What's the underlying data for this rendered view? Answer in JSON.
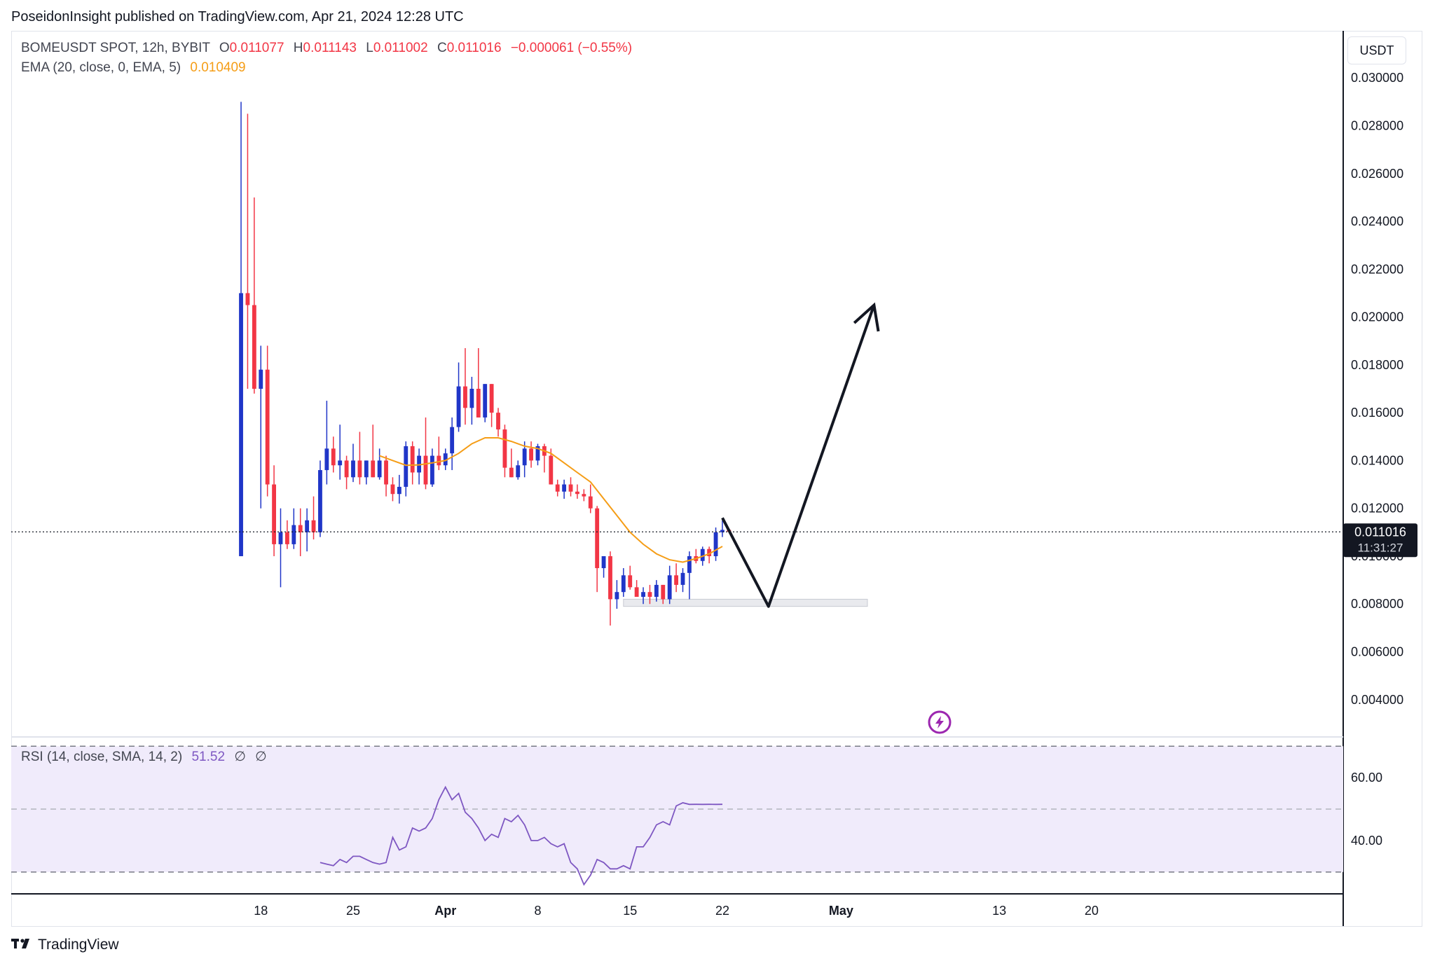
{
  "header": {
    "published": "PoseidonInsight published on TradingView.com, Apr 21, 2024 12:28 UTC"
  },
  "legend": {
    "symbol": "BOMEUSDT SPOT, 12h, BYBIT",
    "o_label": "O",
    "o_value": "0.011077",
    "h_label": "H",
    "h_value": "0.011143",
    "l_label": "L",
    "l_value": "0.011002",
    "c_label": "C",
    "c_value": "0.011016",
    "change": "−0.000061 (−0.55%)",
    "ema_label": "EMA (20, close, 0, EMA, 5)",
    "ema_value": "0.010409",
    "rsi_label": "RSI (14, close, SMA, 14, 2)",
    "rsi_value": "51.52",
    "rsi_extra1": "∅",
    "rsi_extra2": "∅"
  },
  "price_axis": {
    "currency": "USDT",
    "last_price": "0.011016",
    "countdown": "11:31:27"
  },
  "footer": {
    "brand": "TradingView"
  },
  "colors": {
    "up": "#2036c8",
    "down": "#f23645",
    "ema": "#f59d16",
    "rsi": "#7e57c2",
    "rsi_band": "#f0ebfb",
    "arrow": "#131722",
    "support_box": "#e9eaee"
  },
  "icons": {
    "flash": "lightning-bolt-icon",
    "brand": "tradingview-logo-icon"
  },
  "chart_data": [
    {
      "type": "candlestick",
      "title": "BOMEUSDT SPOT, 12h, BYBIT",
      "ylim": [
        0.0025,
        0.0315
      ],
      "yticks": [
        "0.030000",
        "0.028000",
        "0.026000",
        "0.024000",
        "0.022000",
        "0.020000",
        "0.018000",
        "0.016000",
        "0.014000",
        "0.012000",
        "0.010000",
        "0.008000",
        "0.006000",
        "0.004000"
      ],
      "xticks": [
        {
          "label": "18",
          "day": 18
        },
        {
          "label": "25",
          "day": 25
        },
        {
          "label": "Apr",
          "day": 32
        },
        {
          "label": "8",
          "day": 39
        },
        {
          "label": "15",
          "day": 46
        },
        {
          "label": "22",
          "day": 53
        },
        {
          "label": "May",
          "day": 62
        },
        {
          "label": "13",
          "day": 74
        },
        {
          "label": "20",
          "day": 81
        }
      ],
      "candles": [
        [
          0.01,
          0.029,
          0.01,
          0.021
        ],
        [
          0.021,
          0.0285,
          0.017,
          0.0205
        ],
        [
          0.0205,
          0.025,
          0.0168,
          0.017
        ],
        [
          0.017,
          0.0188,
          0.012,
          0.0178
        ],
        [
          0.0178,
          0.0188,
          0.0125,
          0.013
        ],
        [
          0.013,
          0.0138,
          0.01,
          0.0105
        ],
        [
          0.0105,
          0.012,
          0.0087,
          0.011
        ],
        [
          0.011,
          0.0115,
          0.0103,
          0.0105
        ],
        [
          0.0105,
          0.012,
          0.0103,
          0.0113
        ],
        [
          0.0113,
          0.012,
          0.01,
          0.011
        ],
        [
          0.011,
          0.012,
          0.0102,
          0.0115
        ],
        [
          0.0115,
          0.0125,
          0.0107,
          0.011
        ],
        [
          0.011,
          0.014,
          0.0108,
          0.0136
        ],
        [
          0.0136,
          0.0165,
          0.013,
          0.0145
        ],
        [
          0.0145,
          0.015,
          0.0135,
          0.0138
        ],
        [
          0.0138,
          0.0155,
          0.0132,
          0.014
        ],
        [
          0.014,
          0.0142,
          0.0128,
          0.0133
        ],
        [
          0.0133,
          0.0147,
          0.0131,
          0.014
        ],
        [
          0.014,
          0.0152,
          0.013,
          0.0133
        ],
        [
          0.0133,
          0.014,
          0.013,
          0.014
        ],
        [
          0.014,
          0.0155,
          0.0133,
          0.0133
        ],
        [
          0.0133,
          0.0145,
          0.0132,
          0.014
        ],
        [
          0.014,
          0.0142,
          0.0125,
          0.013
        ],
        [
          0.013,
          0.0133,
          0.0123,
          0.0126
        ],
        [
          0.0126,
          0.0134,
          0.0122,
          0.0129
        ],
        [
          0.0129,
          0.0148,
          0.0125,
          0.0146
        ],
        [
          0.0146,
          0.0148,
          0.013,
          0.0135
        ],
        [
          0.0135,
          0.0145,
          0.013,
          0.0142
        ],
        [
          0.0142,
          0.0158,
          0.0128,
          0.013
        ],
        [
          0.013,
          0.0145,
          0.0129,
          0.0142
        ],
        [
          0.0142,
          0.015,
          0.0136,
          0.0138
        ],
        [
          0.0138,
          0.0145,
          0.0136,
          0.0143
        ],
        [
          0.0143,
          0.0158,
          0.0136,
          0.0154
        ],
        [
          0.0154,
          0.0181,
          0.0152,
          0.0171
        ],
        [
          0.0171,
          0.0187,
          0.0155,
          0.0162
        ],
        [
          0.0162,
          0.0175,
          0.0155,
          0.017
        ],
        [
          0.017,
          0.0187,
          0.016,
          0.0158
        ],
        [
          0.0158,
          0.0172,
          0.0156,
          0.0172
        ],
        [
          0.0172,
          0.0172,
          0.0154,
          0.016
        ],
        [
          0.016,
          0.0162,
          0.015,
          0.0153
        ],
        [
          0.0153,
          0.0155,
          0.0133,
          0.0137
        ],
        [
          0.0137,
          0.0145,
          0.0133,
          0.0133
        ],
        [
          0.0133,
          0.014,
          0.0132,
          0.0138
        ],
        [
          0.0138,
          0.0148,
          0.0133,
          0.0145
        ],
        [
          0.0145,
          0.0148,
          0.0137,
          0.014
        ],
        [
          0.014,
          0.0147,
          0.0138,
          0.0146
        ],
        [
          0.0146,
          0.0147,
          0.0135,
          0.0142
        ],
        [
          0.0142,
          0.0145,
          0.013,
          0.013
        ],
        [
          0.013,
          0.0132,
          0.0125,
          0.0127
        ],
        [
          0.0127,
          0.0132,
          0.0124,
          0.013
        ],
        [
          0.013,
          0.0133,
          0.0125,
          0.0127
        ],
        [
          0.0127,
          0.013,
          0.0124,
          0.0126
        ],
        [
          0.0126,
          0.0128,
          0.0123,
          0.0125
        ],
        [
          0.0125,
          0.013,
          0.0118,
          0.012
        ],
        [
          0.012,
          0.0121,
          0.0085,
          0.0095
        ],
        [
          0.0095,
          0.01,
          0.0091,
          0.01
        ],
        [
          0.01,
          0.0102,
          0.0071,
          0.0082
        ],
        [
          0.0082,
          0.009,
          0.0078,
          0.0085
        ],
        [
          0.0085,
          0.0095,
          0.0083,
          0.0092
        ],
        [
          0.0092,
          0.0096,
          0.0086,
          0.0087
        ],
        [
          0.0087,
          0.009,
          0.0083,
          0.0083
        ],
        [
          0.0083,
          0.0087,
          0.008,
          0.0085
        ],
        [
          0.0085,
          0.0088,
          0.008,
          0.0083
        ],
        [
          0.0083,
          0.009,
          0.0081,
          0.0088
        ],
        [
          0.0088,
          0.0088,
          0.008,
          0.0082
        ],
        [
          0.0082,
          0.0096,
          0.008,
          0.0092
        ],
        [
          0.0092,
          0.0097,
          0.0085,
          0.0088
        ],
        [
          0.0088,
          0.0095,
          0.0085,
          0.0093
        ],
        [
          0.0093,
          0.0102,
          0.0082,
          0.01
        ],
        [
          0.01,
          0.0103,
          0.0097,
          0.0098
        ],
        [
          0.0098,
          0.0104,
          0.0096,
          0.0103
        ],
        [
          0.0103,
          0.0104,
          0.0097,
          0.01
        ],
        [
          0.01,
          0.0112,
          0.0098,
          0.011
        ],
        [
          0.011,
          0.0115,
          0.0108,
          0.0111
        ],
        [
          0.0111,
          0.01114,
          0.011,
          0.01102
        ]
      ],
      "candles_start_day": 16.5,
      "candle_interval_days": 0.5,
      "ema": [
        [
          27.0,
          0.0142
        ],
        [
          28.0,
          0.014
        ],
        [
          29.0,
          0.0138
        ],
        [
          30.0,
          0.01382
        ],
        [
          31.0,
          0.0139
        ],
        [
          32.0,
          0.014
        ],
        [
          33.0,
          0.0143
        ],
        [
          34.0,
          0.0147
        ],
        [
          35.0,
          0.01495
        ],
        [
          36.0,
          0.01495
        ],
        [
          37.0,
          0.0148
        ],
        [
          38.0,
          0.0146
        ],
        [
          39.0,
          0.0145
        ],
        [
          40.0,
          0.0143
        ],
        [
          41.0,
          0.0139
        ],
        [
          42.0,
          0.0135
        ],
        [
          43.0,
          0.0131
        ],
        [
          44.0,
          0.0124
        ],
        [
          45.0,
          0.0117
        ],
        [
          46.0,
          0.011
        ],
        [
          47.0,
          0.0105
        ],
        [
          48.0,
          0.0101
        ],
        [
          49.0,
          0.00985
        ],
        [
          50.0,
          0.00975
        ],
        [
          51.0,
          0.0099
        ],
        [
          52.0,
          0.0101
        ],
        [
          53.0,
          0.01041
        ]
      ],
      "last_price": 0.011016,
      "support_zone": {
        "day_start": 45.5,
        "day_end": 64.0,
        "y_low": 0.0079,
        "y_high": 0.0082
      },
      "projection": [
        [
          53.0,
          0.0116
        ],
        [
          56.5,
          0.0079
        ],
        [
          64.5,
          0.0205
        ]
      ]
    },
    {
      "type": "line",
      "title": "RSI (14, close, SMA, 14, 2)",
      "ylim": [
        23.5,
        72.5
      ],
      "yticks": [
        "60.00",
        "40.00"
      ],
      "band": [
        30,
        70
      ],
      "midline": 50,
      "series": [
        {
          "name": "RSI",
          "x": [
            22.5,
            23.0,
            23.5,
            24.0,
            24.5,
            25.0,
            25.5,
            26.0,
            26.5,
            27.0,
            27.5,
            28.0,
            28.5,
            29.0,
            29.5,
            30.0,
            30.5,
            31.0,
            31.5,
            32.0,
            32.5,
            33.0,
            33.5,
            34.0,
            34.5,
            35.0,
            35.5,
            36.0,
            36.5,
            37.0,
            37.5,
            38.0,
            38.5,
            39.0,
            39.5,
            40.0,
            40.5,
            41.0,
            41.5,
            42.0,
            42.5,
            43.0,
            43.5,
            44.0,
            44.5,
            45.0,
            45.5,
            46.0,
            46.5,
            47.0,
            47.5,
            48.0,
            48.5,
            49.0,
            49.5,
            50.0,
            50.5,
            51.0,
            51.5,
            52.0,
            52.5,
            53.0
          ],
          "values": [
            33,
            32.5,
            32,
            34,
            33,
            35,
            35,
            34,
            33,
            32.5,
            33,
            41,
            37,
            38,
            44,
            43,
            44,
            47,
            53,
            57,
            53,
            55,
            49,
            47,
            44,
            40,
            42,
            41,
            47,
            46,
            48,
            45,
            40,
            40,
            41,
            39,
            38,
            39,
            33,
            31,
            26,
            29,
            34,
            33,
            31,
            31,
            32,
            31,
            38,
            38,
            41,
            45,
            46,
            45,
            51,
            52,
            51.5,
            51.52,
            51.5,
            51.52,
            51.5,
            51.52
          ]
        }
      ]
    }
  ]
}
